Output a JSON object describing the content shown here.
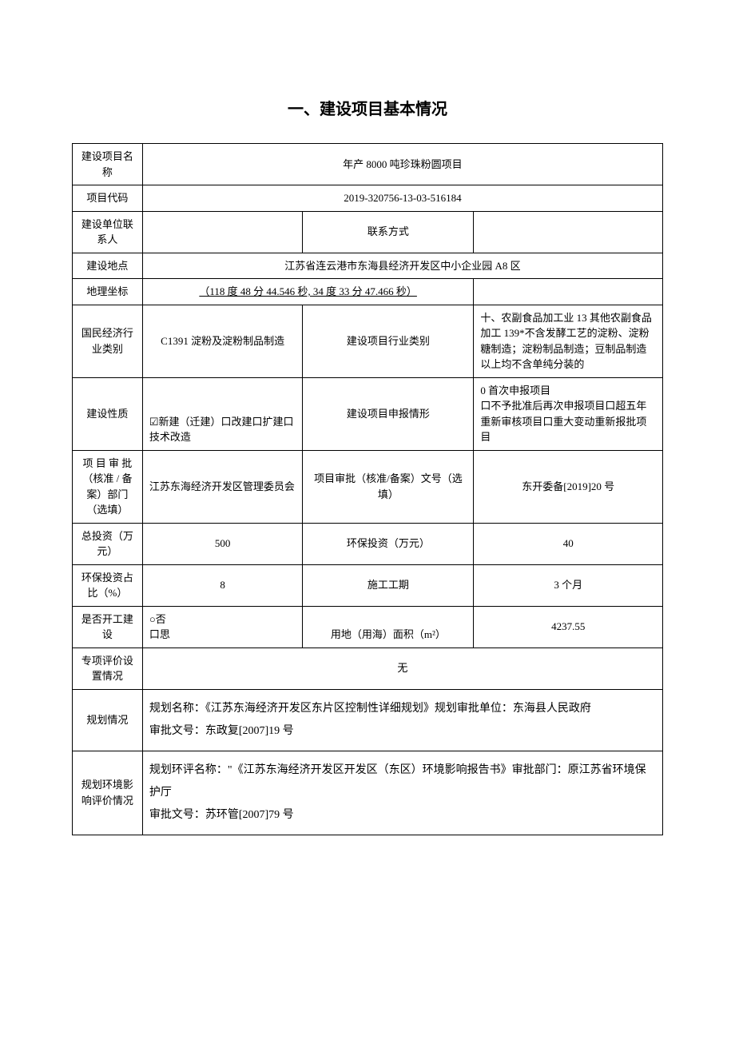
{
  "title": "一、建设项目基本情况",
  "rows": {
    "project_name_label": "建设项目名称",
    "project_name_value": "年产 8000 吨珍珠粉圆项目",
    "project_code_label": "项目代码",
    "project_code_value": "2019-320756-13-03-516184",
    "contact_person_label": "建设单位联系人",
    "contact_person_value": "",
    "contact_method_label": "联系方式",
    "contact_method_value": "",
    "construction_site_label": "建设地点",
    "construction_site_value": "江苏省连云港市东海县经济开发区中小企业园 A8 区",
    "geo_coord_label": "地理坐标",
    "geo_coord_value": "（118 度 48 分 44.546 秒, 34 度 33 分 47.466 秒）",
    "industry_category_label": "国民经济行业类别",
    "industry_category_value": "C1391 淀粉及淀粉制品制造",
    "project_industry_label": "建设项目行业类别",
    "project_industry_value": "十、农副食品加工业 13 其他农副食品加工 139*不含发酵工艺的淀粉、淀粉糖制造；淀粉制品制造；豆制品制造以上均不含单纯分装的",
    "construction_nature_label": "建设性质",
    "construction_nature_value": "☑新建（迁建）口改建口扩建口技术改造",
    "application_type_label": "建设项目申报情形",
    "application_type_value": "0 首次申报项目\n口不予批准后再次申报项目口超五年重新审核项目口重大变动重新报批项目",
    "approval_dept_label": "项 目 审 批（核准 / 备案）部门（选填）",
    "approval_dept_value": "江苏东海经济开发区管理委员会",
    "approval_doc_label": "项目审批（核准/备案）文号（选填）",
    "approval_doc_value": "东开委备[2019]20 号",
    "total_invest_label": "总投资（万元）",
    "total_invest_value": "500",
    "env_invest_label": "环保投资（万元）",
    "env_invest_value": "40",
    "env_ratio_label": "环保投资占比（%）",
    "env_ratio_value": "8",
    "construction_period_label": "施工工期",
    "construction_period_value": "3 个月",
    "started_label": "是否开工建设",
    "started_value": "○否\n口思",
    "land_area_label": "用地（用海）面积（m²）",
    "land_area_value": "4237.55",
    "special_eval_label": "专项评价设置情况",
    "special_eval_value": "无",
    "planning_label": "规划情况",
    "planning_value": "规划名称：《江苏东海经济开发区东片区控制性详细规划》规划审批单位：东海县人民政府\n审批文号：东政复[2007]19 号",
    "planning_env_label": "规划环境影响评价情况",
    "planning_env_value": "规划环评名称：\"《江苏东海经济开发区开发区（东区）环境影响报告书》审批部门：原江苏省环境保护厅\n审批文号：苏环管[2007]79 号"
  },
  "colors": {
    "text": "#000000",
    "border": "#000000",
    "background": "#ffffff"
  },
  "fonts": {
    "title_size": 20,
    "body_size": 13,
    "para_size": 14
  }
}
